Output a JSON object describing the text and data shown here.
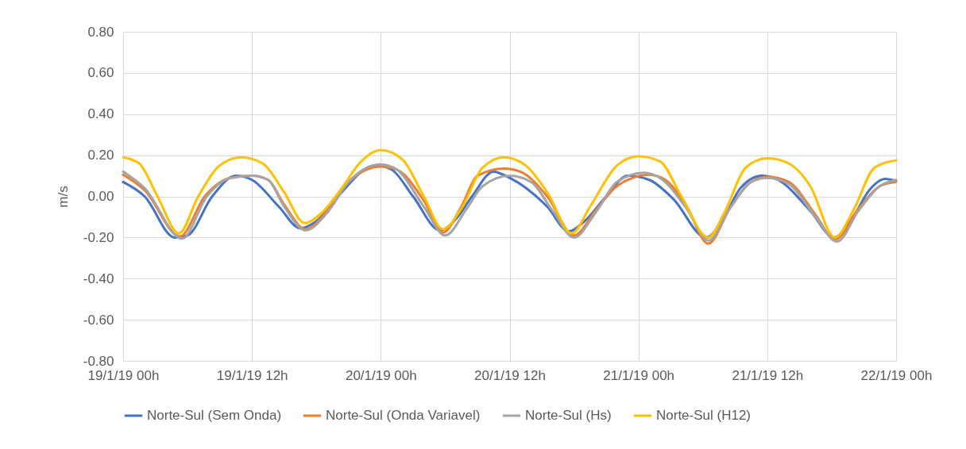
{
  "chart_data": {
    "type": "line",
    "ylabel": "m/s",
    "ylim": [
      -0.8,
      0.8
    ],
    "yticks": [
      {
        "value": -0.8,
        "label": "-0.80"
      },
      {
        "value": -0.6,
        "label": "-0.60"
      },
      {
        "value": -0.4,
        "label": "-0.40"
      },
      {
        "value": -0.2,
        "label": "-0.20"
      },
      {
        "value": 0,
        "label": "0.00"
      },
      {
        "value": 0.2,
        "label": "0.20"
      },
      {
        "value": 0.4,
        "label": "0.40"
      },
      {
        "value": 0.6,
        "label": "0.60"
      },
      {
        "value": 0.8,
        "label": "0.80"
      }
    ],
    "xlim": [
      "--01-19T00:00",
      "--01-22T00:00"
    ],
    "xticks": [
      {
        "value": "--01-19T00:00",
        "label": "19/1/19 00h"
      },
      {
        "value": "--01-19T12:00",
        "label": "19/1/19 12h"
      },
      {
        "value": "--01-20T00:00",
        "label": "20/1/19 00h"
      },
      {
        "value": "--01-20T12:00",
        "label": "20/1/19 12h"
      },
      {
        "value": "--01-21T00:00",
        "label": "21/1/19 00h"
      },
      {
        "value": "--01-21T12:00",
        "label": "21/1/19 12h"
      },
      {
        "value": "--01-22T00:00",
        "label": "22/1/19 00h"
      }
    ],
    "grid": true,
    "legend": "bottom",
    "marker": "none",
    "line_style": "solid",
    "series": [
      {
        "name": "Norte-Sul  (Sem Onda)",
        "color": "#4472c4",
        "x": [
          "--01-19T00:00",
          "--01-19T02:00",
          "--01-19T04:48",
          "--01-19T06:00",
          "--01-19T08:18",
          "--01-19T10:30",
          "--01-19T12:00",
          "--01-19T14:30",
          "--01-19T16:30",
          "--01-19T18:00",
          "--01-19T20:00",
          "--01-19T23:30",
          "--01-20T01:00",
          "--01-20T03:00",
          "--01-20T05:30",
          "--01-20T07:00",
          "--01-20T08:30",
          "--01-20T10:30",
          "--01-20T12:00",
          "--01-20T15:30",
          "--01-20T17:30",
          "--01-20T19:00",
          "--01-20T21:00",
          "--01-20T23:00",
          "--01-21T01:00",
          "--01-21T03:12",
          "--01-21T06:18",
          "--01-21T08:00",
          "--01-21T09:30",
          "--01-21T11:30",
          "--01-21T13:00",
          "--01-21T16:00",
          "--01-21T18:12",
          "--01-21T20:00",
          "--01-21T21:30",
          "--01-21T23:00",
          "--01-22T00:00"
        ],
        "values": [
          0.07,
          0.0,
          -0.2,
          -0.19,
          0.0,
          0.1,
          0.08,
          -0.05,
          -0.155,
          -0.12,
          0.0,
          0.15,
          0.13,
          0.0,
          -0.165,
          -0.11,
          0.0,
          0.12,
          0.09,
          -0.05,
          -0.17,
          -0.12,
          0.0,
          0.1,
          0.08,
          -0.01,
          -0.2,
          -0.1,
          0.04,
          0.1,
          0.08,
          -0.07,
          -0.2,
          -0.1,
          0.03,
          0.085,
          0.075
        ]
      },
      {
        "name": "Norte-Sul  (Onda Variavel)",
        "color": "#ed7d31",
        "x": [
          "--01-19T00:00",
          "--01-19T02:00",
          "--01-19T05:18",
          "--01-19T07:36",
          "--01-19T10:00",
          "--01-19T12:00",
          "--01-19T13:30",
          "--01-19T15:00",
          "--01-19T17:00",
          "--01-19T19:00",
          "--01-19T21:00",
          "--01-20T00:00",
          "--01-20T01:30",
          "--01-20T04:00",
          "--01-20T05:48",
          "--01-20T07:30",
          "--01-20T09:00",
          "--01-20T11:30",
          "--01-20T13:00",
          "--01-20T15:30",
          "--01-20T18:00",
          "--01-20T20:00",
          "--01-20T22:00",
          "--01-21T01:00",
          "--01-21T02:30",
          "--01-21T04:30",
          "--01-21T06:30",
          "--01-21T08:30",
          "--01-21T10:30",
          "--01-21T12:00",
          "--01-21T14:00",
          "--01-21T16:30",
          "--01-21T18:18",
          "--01-21T20:30",
          "--01-21T22:30",
          "--01-22T00:00"
        ],
        "values": [
          0.105,
          0.03,
          -0.195,
          0.0,
          0.09,
          0.1,
          0.08,
          -0.04,
          -0.16,
          -0.07,
          0.07,
          0.145,
          0.13,
          -0.02,
          -0.175,
          -0.05,
          0.1,
          0.135,
          0.12,
          0.0,
          -0.19,
          -0.07,
          0.05,
          0.105,
          0.08,
          -0.05,
          -0.23,
          -0.06,
          0.07,
          0.095,
          0.07,
          -0.09,
          -0.21,
          -0.06,
          0.05,
          0.07
        ]
      },
      {
        "name": "Norte-Sul  (Hs)",
        "color": "#a5a5a5",
        "x": [
          "--01-19T00:00",
          "--01-19T02:00",
          "--01-19T05:30",
          "--01-19T07:48",
          "--01-19T10:00",
          "--01-19T12:00",
          "--01-19T13:30",
          "--01-19T15:00",
          "--01-19T17:00",
          "--01-19T19:00",
          "--01-19T21:00",
          "--01-20T00:00",
          "--01-20T01:30",
          "--01-20T04:00",
          "--01-20T06:00",
          "--01-20T08:00",
          "--01-20T09:30",
          "--01-20T12:00",
          "--01-20T14:00",
          "--01-20T16:00",
          "--01-20T18:00",
          "--01-20T20:00",
          "--01-20T22:00",
          "--01-21T00:30",
          "--01-21T02:00",
          "--01-21T04:30",
          "--01-21T06:30",
          "--01-21T08:30",
          "--01-21T10:30",
          "--01-21T12:00",
          "--01-21T14:00",
          "--01-21T16:30",
          "--01-21T18:30",
          "--01-21T20:30",
          "--01-21T22:30",
          "--01-22T00:00"
        ],
        "values": [
          0.12,
          0.04,
          -0.205,
          0.0,
          0.09,
          0.1,
          0.08,
          -0.05,
          -0.165,
          -0.08,
          0.07,
          0.155,
          0.13,
          -0.05,
          -0.19,
          -0.06,
          0.05,
          0.1,
          0.07,
          -0.07,
          -0.2,
          -0.08,
          0.07,
          0.115,
          0.09,
          -0.06,
          -0.215,
          -0.06,
          0.07,
          0.09,
          0.06,
          -0.1,
          -0.22,
          -0.07,
          0.05,
          0.08
        ]
      },
      {
        "name": "Norte-Sul (H12)",
        "color": "#ffc000",
        "x": [
          "--01-19T00:00",
          "--01-19T01:30",
          "--01-19T03:12",
          "--01-19T05:12",
          "--01-19T07:00",
          "--01-19T09:00",
          "--01-19T11:00",
          "--01-19T13:00",
          "--01-19T15:00",
          "--01-19T16:54",
          "--01-19T18:30",
          "--01-19T20:30",
          "--01-19T22:00",
          "--01-20T00:00",
          "--01-20T02:00",
          "--01-20T04:00",
          "--01-20T05:48",
          "--01-20T07:30",
          "--01-20T09:30",
          "--01-20T11:30",
          "--01-20T13:30",
          "--01-20T15:30",
          "--01-20T17:48",
          "--01-20T19:30",
          "--01-20T22:00",
          "--01-21T00:00",
          "--01-21T02:00",
          "--01-21T04:00",
          "--01-21T06:30",
          "--01-21T08:00",
          "--01-21T10:00",
          "--01-21T12:00",
          "--01-21T14:00",
          "--01-21T16:00",
          "--01-21T18:18",
          "--01-21T20:00",
          "--01-21T22:00",
          "--01-22T00:00"
        ],
        "values": [
          0.19,
          0.16,
          0.0,
          -0.18,
          0.0,
          0.15,
          0.19,
          0.16,
          0.02,
          -0.13,
          -0.08,
          0.05,
          0.16,
          0.225,
          0.18,
          0.0,
          -0.16,
          -0.06,
          0.14,
          0.19,
          0.15,
          0.02,
          -0.18,
          -0.05,
          0.15,
          0.195,
          0.17,
          0.0,
          -0.2,
          -0.08,
          0.14,
          0.185,
          0.16,
          0.05,
          -0.2,
          -0.07,
          0.14,
          0.175
        ]
      }
    ]
  }
}
